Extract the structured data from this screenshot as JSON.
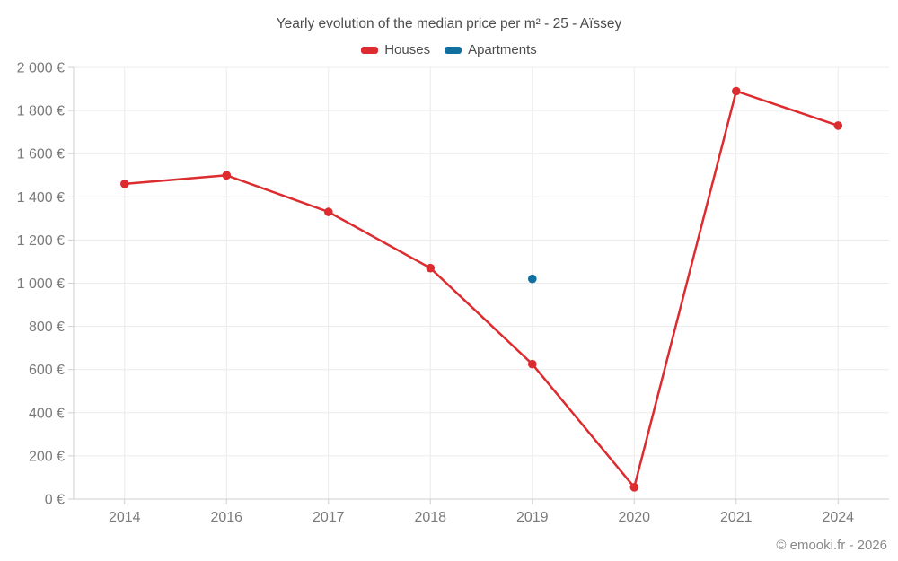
{
  "title": "Yearly evolution of the median price per m² - 25 - Aïssey",
  "footer": "© emooki.fr - 2026",
  "legend": {
    "items": [
      {
        "label": "Houses",
        "color": "#dc2c30"
      },
      {
        "label": "Apartments",
        "color": "#11709f"
      }
    ]
  },
  "chart_data": {
    "type": "line",
    "title": "Yearly evolution of the median price per m² - 25 - Aïssey",
    "categories": [
      "2014",
      "2016",
      "2017",
      "2018",
      "2019",
      "2020",
      "2021",
      "2024"
    ],
    "series": [
      {
        "name": "Houses",
        "color": "#dc2c30",
        "values": [
          1460,
          1500,
          1330,
          1070,
          625,
          55,
          1890,
          1730
        ]
      },
      {
        "name": "Apartments",
        "color": "#11709f",
        "values": [
          null,
          null,
          null,
          null,
          1020,
          null,
          null,
          null
        ]
      }
    ],
    "xlabel": "",
    "ylabel": "",
    "ylim": [
      0,
      2000
    ],
    "ytick_step": 200,
    "y_unit": "€",
    "grid": true,
    "legend_position": "top",
    "axis_color": "#cfcfcf",
    "grid_color": "#ececec",
    "tick_label_color": "#7a7a7a"
  }
}
